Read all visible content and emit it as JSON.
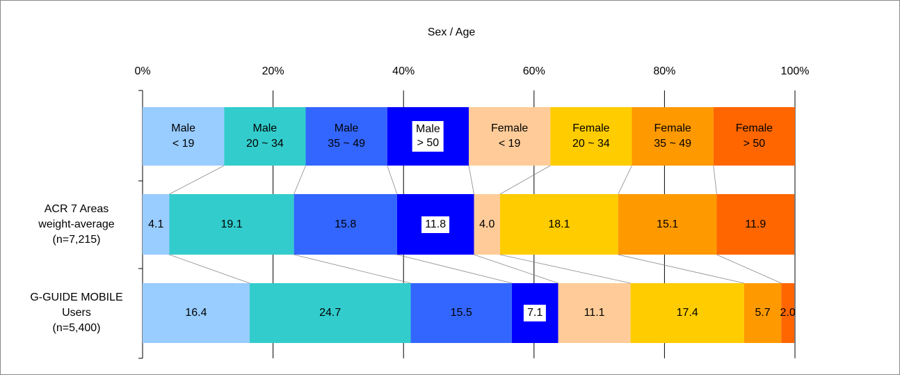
{
  "chart_data": {
    "type": "stacked-bar-100",
    "x_label": "Sex / Age",
    "categories": [
      "ACR 7 Areas\nweight-average\n(n=7,215)",
      "G-GUIDE MOBILE\nUsers\n(n=5,400)"
    ],
    "series": [
      {
        "name": "Male\n< 19",
        "color": "#99ccff",
        "values": [
          4.1,
          16.4
        ],
        "value_labels": [
          "4.1",
          "16.4"
        ]
      },
      {
        "name": "Male\n20 ~ 34",
        "color": "#33cccc",
        "values": [
          19.1,
          24.7
        ],
        "value_labels": [
          "19.1",
          "24.7"
        ]
      },
      {
        "name": "Male\n35 ~ 49",
        "color": "#3366ff",
        "values": [
          15.8,
          15.5
        ],
        "value_labels": [
          "15.8",
          "15.5"
        ]
      },
      {
        "name": "Male\n> 50",
        "color": "#0000ff",
        "values": [
          11.8,
          7.1
        ],
        "value_labels": [
          "11.8",
          "7.1"
        ]
      },
      {
        "name": "Female\n< 19",
        "color": "#ffcc99",
        "values": [
          4.0,
          11.1
        ],
        "value_labels": [
          "4.0",
          "11.1"
        ]
      },
      {
        "name": "Female\n20 ~ 34",
        "color": "#ffcc00",
        "values": [
          18.1,
          17.4
        ],
        "value_labels": [
          "18.1",
          "17.4"
        ]
      },
      {
        "name": "Female\n35 ~ 49",
        "color": "#ff9900",
        "values": [
          15.1,
          5.7
        ],
        "value_labels": [
          "15.1",
          "5.7"
        ]
      },
      {
        "name": "Female\n> 50",
        "color": "#ff6600",
        "values": [
          11.9,
          2.0
        ],
        "value_labels": [
          "11.9",
          "2.0"
        ]
      }
    ],
    "xlim": [
      0,
      100
    ],
    "xticks": [
      {
        "value": 0,
        "label": "0%"
      },
      {
        "value": 20,
        "label": "20%"
      },
      {
        "value": 40,
        "label": "40%"
      },
      {
        "value": 60,
        "label": "60%"
      },
      {
        "value": 80,
        "label": "80%"
      },
      {
        "value": 100,
        "label": "100%"
      }
    ],
    "grid": true
  }
}
